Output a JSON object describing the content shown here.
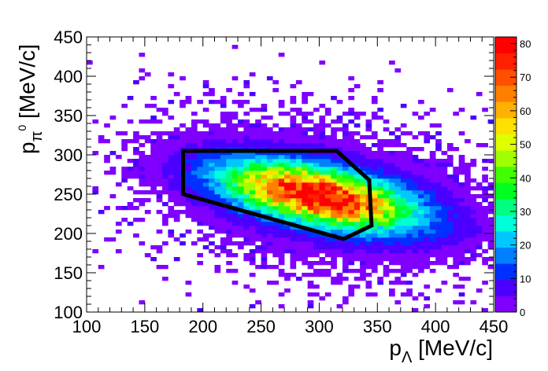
{
  "chart_data": {
    "type": "heatmap",
    "title": "",
    "xlabel": "p",
    "xlabel_sub": "Λ",
    "xlabel_unit": " [MeV/c]",
    "ylabel": "p",
    "ylabel_sub": "π",
    "ylabel_sup": "0",
    "ylabel_unit": " [MeV/c]",
    "xlim": [
      100,
      450
    ],
    "ylim": [
      100,
      450
    ],
    "x_ticks": [
      "100",
      "150",
      "200",
      "250",
      "300",
      "350",
      "400",
      "450"
    ],
    "y_ticks": [
      "100",
      "150",
      "200",
      "250",
      "300",
      "350",
      "400",
      "450"
    ],
    "zlim": [
      0,
      82
    ],
    "z_ticks": [
      "0",
      "10",
      "20",
      "30",
      "40",
      "50",
      "60",
      "70",
      "80"
    ],
    "bins": {
      "x_bin_width": 5,
      "y_bin_width": 5
    },
    "distribution": {
      "peak_x": 300,
      "peak_y": 248,
      "peak_count": 80,
      "orientation": "tilted, elongated along x"
    },
    "palette": [
      "#7f00ff",
      "#4b00ff",
      "#0030ff",
      "#0080ff",
      "#00c8ff",
      "#00ffd8",
      "#00ff80",
      "#00ff20",
      "#40ff00",
      "#a0ff00",
      "#e0ff00",
      "#ffe000",
      "#ffb000",
      "#ff8000",
      "#ff5000",
      "#ff2000",
      "#ff0000"
    ],
    "selection_polygon": [
      [
        183,
        305
      ],
      [
        315,
        305
      ],
      [
        343,
        268
      ],
      [
        345,
        210
      ],
      [
        321,
        193
      ],
      [
        183,
        250
      ]
    ],
    "selection_color": "#000000",
    "grid": false,
    "legend": "none"
  }
}
